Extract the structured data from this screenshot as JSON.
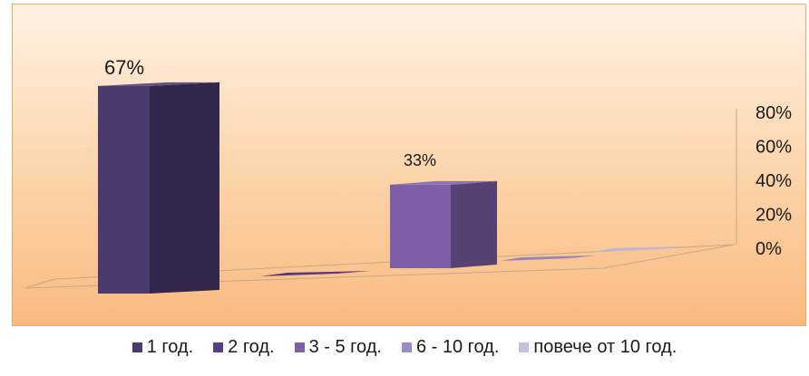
{
  "chart_data": {
    "type": "bar",
    "three_d": true,
    "categories": [
      "1 год.",
      "2 год.",
      "3 - 5 год.",
      "6 - 10 год.",
      "повече от 10 год."
    ],
    "values": [
      67,
      0,
      33,
      0,
      0
    ],
    "data_labels": [
      "67%",
      "",
      "33%",
      "",
      ""
    ],
    "ylim": [
      0,
      80
    ],
    "yticks": [
      "0%",
      "20%",
      "40%",
      "60%",
      "80%"
    ],
    "y_axis_side": "right",
    "legend_position": "bottom",
    "grid": false,
    "colors": [
      "#4b3a6e",
      "#5a3f80",
      "#7e60a8",
      "#9d8bc2",
      "#c9bde0"
    ],
    "background": "orange-gradient"
  }
}
